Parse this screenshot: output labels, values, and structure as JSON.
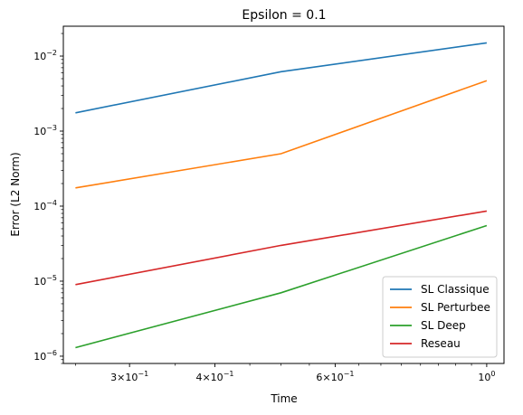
{
  "chart_data": {
    "type": "line",
    "title": "Epsilon = 0.1",
    "xlabel": "Time",
    "ylabel": "Error (L2 Norm)",
    "xscale": "log",
    "yscale": "log",
    "xlim": [
      0.24,
      1.06
    ],
    "ylim": [
      8e-07,
      0.025
    ],
    "grid": false,
    "legend_position": "lower-right",
    "x": [
      0.25,
      0.5,
      1.0
    ],
    "xticks": [
      {
        "value": 0.3,
        "base": "3×10",
        "exp": "−1"
      },
      {
        "value": 0.4,
        "base": "4×10",
        "exp": "−1"
      },
      {
        "value": 0.6,
        "base": "6×10",
        "exp": "−1"
      },
      {
        "value": 1.0,
        "base": "10",
        "exp": "0"
      }
    ],
    "yticks": [
      {
        "value": 1e-06,
        "base": "10",
        "exp": "−6"
      },
      {
        "value": 1e-05,
        "base": "10",
        "exp": "−5"
      },
      {
        "value": 0.0001,
        "base": "10",
        "exp": "−4"
      },
      {
        "value": 0.001,
        "base": "10",
        "exp": "−3"
      },
      {
        "value": 0.01,
        "base": "10",
        "exp": "−2"
      }
    ],
    "series": [
      {
        "name": "SL Classique",
        "color": "#1f77b4",
        "values": [
          0.00175,
          0.0062,
          0.015
        ]
      },
      {
        "name": "SL Perturbee",
        "color": "#ff7f0e",
        "values": [
          0.000175,
          0.0005,
          0.0047
        ]
      },
      {
        "name": "SL Deep",
        "color": "#2ca02c",
        "values": [
          1.3e-06,
          7e-06,
          5.5e-05
        ]
      },
      {
        "name": "Reseau",
        "color": "#d62728",
        "values": [
          9e-06,
          3e-05,
          8.6e-05
        ]
      }
    ]
  }
}
